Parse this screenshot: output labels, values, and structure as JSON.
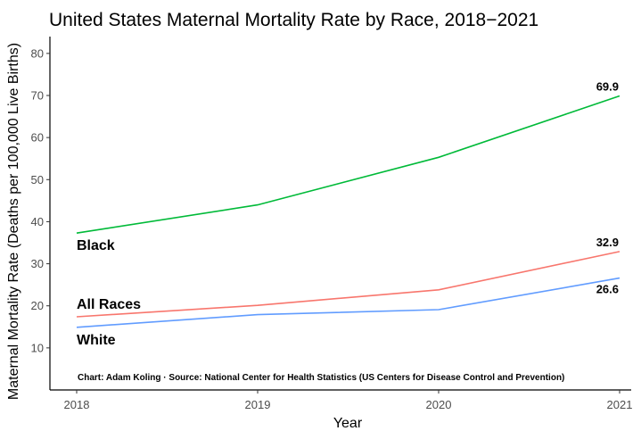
{
  "chart_data": {
    "type": "line",
    "title": "United States Maternal Mortality Rate by Race, 2018−2021",
    "xlabel": "Year",
    "ylabel": "Maternal Mortality Rate (Deaths per 100,000 Live Births)",
    "x": [
      2018,
      2019,
      2020,
      2021
    ],
    "x_tick_labels": [
      "2018",
      "2019",
      "2020",
      "2021"
    ],
    "ylim": [
      0,
      84
    ],
    "y_ticks": [
      10,
      20,
      30,
      40,
      50,
      60,
      70,
      80
    ],
    "y_tick_labels": [
      "10",
      "20",
      "30",
      "40",
      "50",
      "60",
      "70",
      "80"
    ],
    "grid": false,
    "legend": "none",
    "series": [
      {
        "name": "Black",
        "values": [
          37.3,
          44.0,
          55.3,
          69.9
        ],
        "color": "#00ba38",
        "end_label": "69.9"
      },
      {
        "name": "All Races",
        "values": [
          17.4,
          20.1,
          23.8,
          32.9
        ],
        "color": "#f8766d",
        "end_label": "32.9"
      },
      {
        "name": "White",
        "values": [
          14.9,
          17.9,
          19.1,
          26.6
        ],
        "color": "#619cff",
        "end_label": "26.6"
      }
    ],
    "caption": "Chart: Adam Koling  ·  Source: National Center for Health Statistics (US Centers for Disease Control and Prevention)"
  }
}
